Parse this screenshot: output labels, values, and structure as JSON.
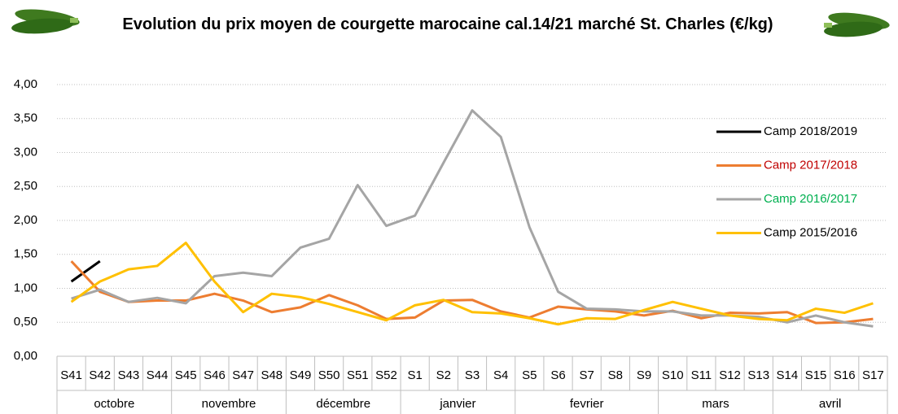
{
  "chart_data": {
    "type": "line",
    "title": "Evolution du prix moyen de courgette marocaine cal.14/21 marché St. Charles (€/kg)",
    "categories": [
      "S41",
      "S42",
      "S43",
      "S44",
      "S45",
      "S46",
      "S47",
      "S48",
      "S49",
      "S50",
      "S51",
      "S52",
      "S1",
      "S2",
      "S3",
      "S4",
      "S5",
      "S6",
      "S7",
      "S8",
      "S9",
      "S10",
      "S11",
      "S12",
      "S13",
      "S14",
      "S15",
      "S16",
      "S17"
    ],
    "category_groups": [
      "octobre",
      null,
      null,
      null,
      "novembre",
      null,
      null,
      null,
      "décembre",
      null,
      null,
      null,
      "janvier",
      null,
      null,
      null,
      "fevrier",
      null,
      null,
      null,
      null,
      "mars",
      null,
      null,
      null,
      "avril",
      null,
      null,
      null
    ],
    "ylim": [
      0,
      4
    ],
    "yticks": [
      {
        "value": 0,
        "label": "0,00"
      },
      {
        "value": 0.5,
        "label": "0,50"
      },
      {
        "value": 1,
        "label": "1,00"
      },
      {
        "value": 1.5,
        "label": "1,50"
      },
      {
        "value": 2,
        "label": "2,00"
      },
      {
        "value": 2.5,
        "label": "2,50"
      },
      {
        "value": 3,
        "label": "3,00"
      },
      {
        "value": 3.5,
        "label": "3,50"
      },
      {
        "value": 4,
        "label": "4,00"
      }
    ],
    "grid": true,
    "legend": "upper right",
    "series": [
      {
        "name": "Camp 2018/2019",
        "color": "#000000",
        "label_color": "#000000",
        "values": [
          1.1,
          1.4,
          null,
          null,
          null,
          null,
          null,
          null,
          null,
          null,
          null,
          null,
          null,
          null,
          null,
          null,
          null,
          null,
          null,
          null,
          null,
          null,
          null,
          null,
          null,
          null,
          null,
          null,
          null
        ]
      },
      {
        "name": "Camp 2017/2018",
        "color": "#ed7d31",
        "label_color": "#c00000",
        "values": [
          1.4,
          0.95,
          0.8,
          0.82,
          0.82,
          0.92,
          0.82,
          0.65,
          0.72,
          0.9,
          0.75,
          0.55,
          0.57,
          0.82,
          0.83,
          0.66,
          0.57,
          0.73,
          0.69,
          0.66,
          0.6,
          0.67,
          0.56,
          0.64,
          0.63,
          0.65,
          0.49,
          0.5,
          0.55
        ]
      },
      {
        "name": "Camp 2016/2017",
        "color": "#a5a5a5",
        "label_color": "#00b050",
        "values": [
          0.85,
          0.98,
          0.8,
          0.86,
          0.78,
          1.18,
          1.23,
          1.18,
          1.6,
          1.73,
          2.52,
          1.92,
          2.07,
          2.85,
          3.62,
          3.23,
          1.9,
          0.95,
          0.7,
          0.69,
          0.66,
          0.66,
          0.6,
          0.6,
          0.58,
          0.5,
          0.6,
          0.5,
          0.44
        ]
      },
      {
        "name": "Camp 2015/2016",
        "color": "#ffc000",
        "label_color": "#000000",
        "values": [
          0.8,
          1.1,
          1.28,
          1.33,
          1.67,
          1.1,
          0.65,
          0.92,
          0.87,
          0.77,
          0.65,
          0.53,
          0.75,
          0.83,
          0.65,
          0.63,
          0.56,
          0.47,
          0.56,
          0.55,
          0.68,
          0.8,
          0.7,
          0.6,
          0.55,
          0.53,
          0.7,
          0.64,
          0.78
        ]
      }
    ]
  }
}
